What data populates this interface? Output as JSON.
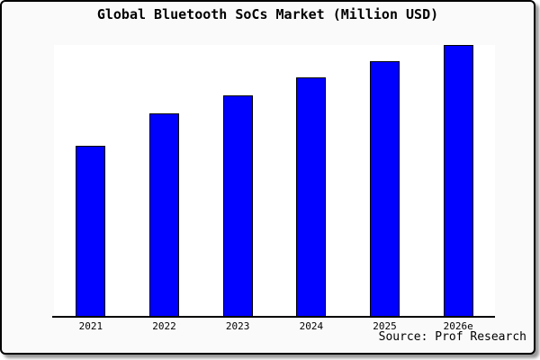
{
  "chart_data": {
    "type": "bar",
    "title": "Global Bluetooth SoCs Market (Million USD)",
    "categories": [
      "2021",
      "2022",
      "2023",
      "2024",
      "2025",
      "2026e"
    ],
    "values": [
      63,
      75,
      81.5,
      88,
      94,
      100
    ],
    "values_note": "relative bar heights as percent of tallest bar; y-axis has no tick labels or gridlines",
    "ylim": [
      0,
      100
    ],
    "xlabel": "",
    "ylabel": "",
    "grid": false,
    "legend": false,
    "source_label": "Source: Prof Research",
    "colors": {
      "bar_fill": "#0000ff",
      "bar_border": "#000000",
      "plot_bg": "#ffffff",
      "canvas_bg": "#fafafa",
      "frame": "#000000",
      "text": "#000000"
    }
  }
}
